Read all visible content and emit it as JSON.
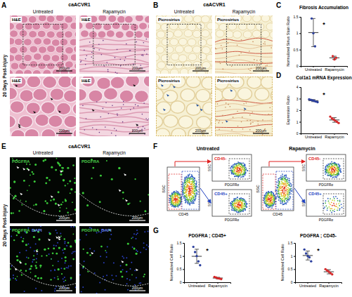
{
  "figure": {
    "panel_labels": [
      "A",
      "B",
      "C",
      "D",
      "E",
      "F",
      "G"
    ],
    "micrographs": [
      {
        "title": "caACVR1",
        "columns": [
          "Untreated",
          "Rapamycin"
        ],
        "side_label": "20 Days Post-injury",
        "stains": [
          [
            "H&E"
          ],
          [
            "H&E"
          ]
        ],
        "scale_bar": "200μm"
      },
      {
        "title": "caACVR1",
        "columns": [
          "Untreated",
          "Rapamycin"
        ],
        "stains": [
          [
            "Picrosirius"
          ],
          [
            "Picrosirius"
          ]
        ],
        "scale_bar": "200μm"
      },
      {
        "title": "caACVR1",
        "columns": [
          "Untreated",
          "Rapamycin"
        ],
        "side_label": "20 Days Post-injury",
        "stains": [
          [
            "PDGFRA"
          ],
          [
            "PDGFRA",
            "DAPI"
          ]
        ],
        "scale_bar": "200μm"
      }
    ],
    "flow": {
      "groups": [
        "Untreated",
        "Rapamycin"
      ],
      "gates": [
        "CD45-",
        "CD45+"
      ],
      "x_label": "CD45",
      "y_label": "SSC",
      "gate_x_label": "PDGFRα"
    }
  },
  "chart_data": [
    {
      "type": "scatter",
      "title": "Fibrosis Accumulation",
      "y_label": "Normalized Sirius Stain Ratio",
      "categories": [
        "Untreated",
        "Rapamycin"
      ],
      "points": [
        [
          1.45,
          1.0,
          0.6
        ],
        [
          0.3,
          0.2,
          0.25
        ]
      ],
      "means": [
        1.02,
        0.25
      ],
      "errors": [
        0.43,
        0.05
      ],
      "colors": [
        "#2b3f9e",
        "#d62728"
      ],
      "annotation": "*",
      "ylim": [
        0,
        1.5
      ],
      "yticks": [
        0,
        0.5,
        1,
        1.5
      ]
    },
    {
      "type": "scatter",
      "title": "Col1a1 mRNA Expression",
      "y_label": "Expression Ratio",
      "categories": [
        "Untreated",
        "Rapamycin"
      ],
      "points": [
        [
          2.95,
          2.9,
          2.85,
          2.8,
          2.75,
          2.7
        ],
        [
          1.45,
          1.3,
          1.2,
          1.1,
          1.0,
          0.9
        ]
      ],
      "means": [
        2.83,
        1.16
      ],
      "errors": [
        0.09,
        0.2
      ],
      "colors": [
        "#2b3f9e",
        "#d62728"
      ],
      "annotation": "*",
      "ylim": [
        0,
        4
      ],
      "yticks": [
        0,
        1,
        2,
        3,
        4
      ]
    },
    {
      "type": "scatter",
      "title": "PDGFRA ; CD45+",
      "y_label": "Normalized Cell Ratio",
      "categories": [
        "Untreated",
        "Rapamycin"
      ],
      "points": [
        [
          1.35,
          1.15,
          1.0,
          0.8,
          0.65
        ],
        [
          0.2,
          0.18,
          0.15,
          0.14,
          0.12
        ]
      ],
      "means": [
        0.99,
        0.16
      ],
      "errors": [
        0.27,
        0.03
      ],
      "colors": [
        "#2b3f9e",
        "#d62728"
      ],
      "annotation": "*",
      "ylim": [
        0,
        1.5
      ],
      "yticks": [
        0,
        0.5,
        1,
        1.5
      ]
    },
    {
      "type": "scatter",
      "title": "PDGFRA ; CD45-",
      "y_label": "Normalized Cell Ratio",
      "categories": [
        "Untreated",
        "Rapamycin"
      ],
      "points": [
        [
          1.25,
          1.1,
          1.0,
          0.95,
          0.8
        ],
        [
          0.5,
          0.45,
          0.4,
          0.35,
          0.3
        ]
      ],
      "means": [
        1.02,
        0.4
      ],
      "errors": [
        0.17,
        0.08
      ],
      "colors": [
        "#2b3f9e",
        "#d62728"
      ],
      "annotation": "*",
      "ylim": [
        0,
        1.5
      ],
      "yticks": [
        0,
        0.5,
        1,
        1.5
      ]
    }
  ]
}
